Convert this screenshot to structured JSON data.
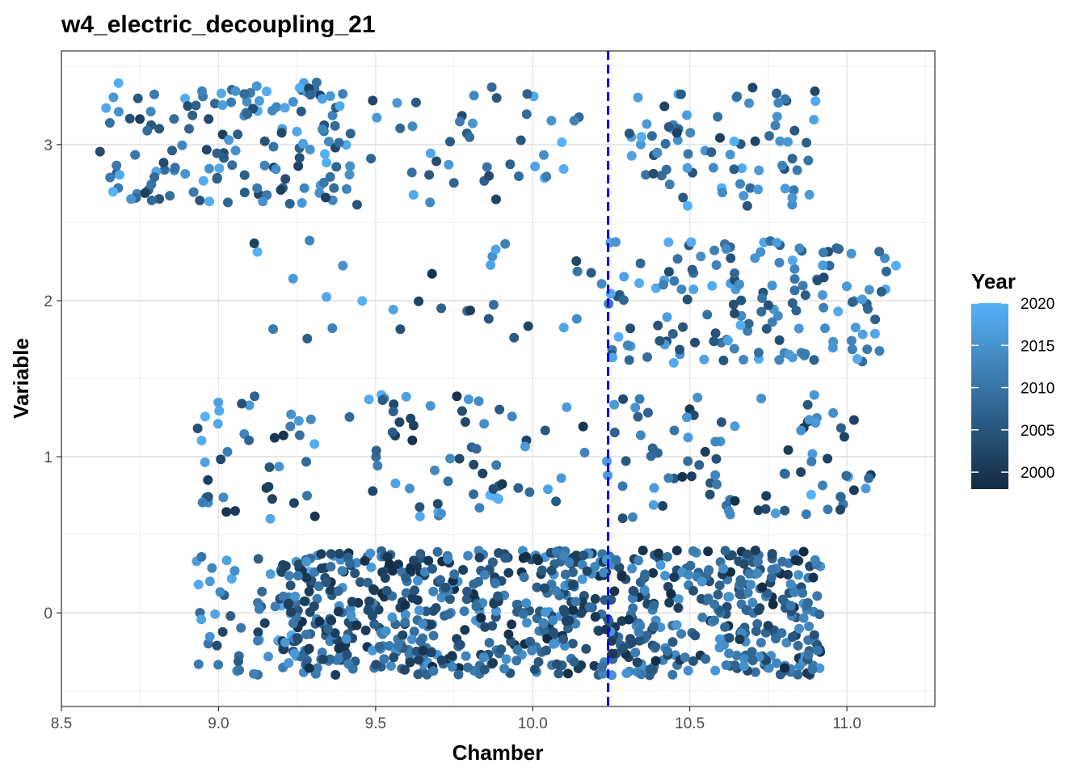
{
  "chart_data": {
    "type": "scatter",
    "title": "w4_electric_decoupling_21",
    "xlabel": "Chamber",
    "ylabel": "Variable",
    "xlim": [
      8.5,
      11.28
    ],
    "ylim": [
      -0.6,
      3.6
    ],
    "x_ticks": [
      8.5,
      9.0,
      9.5,
      10.0,
      10.5,
      11.0
    ],
    "x_tick_labels": [
      "8.5",
      "9.0",
      "9.5",
      "10.0",
      "10.5",
      "11.0"
    ],
    "y_ticks": [
      0,
      1,
      2,
      3
    ],
    "y_tick_labels": [
      "0",
      "1",
      "2",
      "3"
    ],
    "grid": true,
    "reference_line": {
      "x": 10.24,
      "style": "dashed",
      "color": "#0000ee"
    },
    "color_scale": {
      "title": "Year",
      "min": 1998,
      "max": 2020,
      "low_color": "#132B43",
      "high_color": "#56B1F7",
      "breaks": [
        2000,
        2005,
        2010,
        2015,
        2020
      ],
      "break_labels": [
        "2000",
        "2005",
        "2010",
        "2015",
        "2020"
      ],
      "legend_position": "right"
    },
    "clusters": [
      {
        "name": "y3-left",
        "xmin": 8.62,
        "xmax": 9.42,
        "ymin": 2.6,
        "ymax": 3.4,
        "year_min": 2001,
        "year_max": 2020,
        "n": 150
      },
      {
        "name": "y3-mid",
        "xmin": 9.42,
        "xmax": 10.16,
        "ymin": 2.6,
        "ymax": 3.4,
        "year_min": 2001,
        "year_max": 2020,
        "n": 45
      },
      {
        "name": "y3-right",
        "xmin": 10.3,
        "xmax": 10.9,
        "ymin": 2.6,
        "ymax": 3.4,
        "year_min": 2001,
        "year_max": 2020,
        "n": 80
      },
      {
        "name": "y2-mid",
        "xmin": 9.1,
        "xmax": 10.26,
        "ymin": 1.6,
        "ymax": 2.4,
        "year_min": 1999,
        "year_max": 2020,
        "n": 32
      },
      {
        "name": "y2-right",
        "xmin": 10.24,
        "xmax": 11.16,
        "ymin": 1.6,
        "ymax": 2.4,
        "year_min": 2003,
        "year_max": 2020,
        "n": 150
      },
      {
        "name": "y1-all",
        "xmin": 8.93,
        "xmax": 11.1,
        "ymin": 0.6,
        "ymax": 1.4,
        "year_min": 1999,
        "year_max": 2020,
        "n": 190
      },
      {
        "name": "y0-left",
        "xmin": 8.93,
        "xmax": 9.3,
        "ymin": -0.4,
        "ymax": 0.4,
        "year_min": 2001,
        "year_max": 2020,
        "n": 60
      },
      {
        "name": "y0-dense",
        "xmin": 9.2,
        "xmax": 10.92,
        "ymin": -0.4,
        "ymax": 0.4,
        "year_min": 1998,
        "year_max": 2016,
        "n": 820
      }
    ]
  }
}
